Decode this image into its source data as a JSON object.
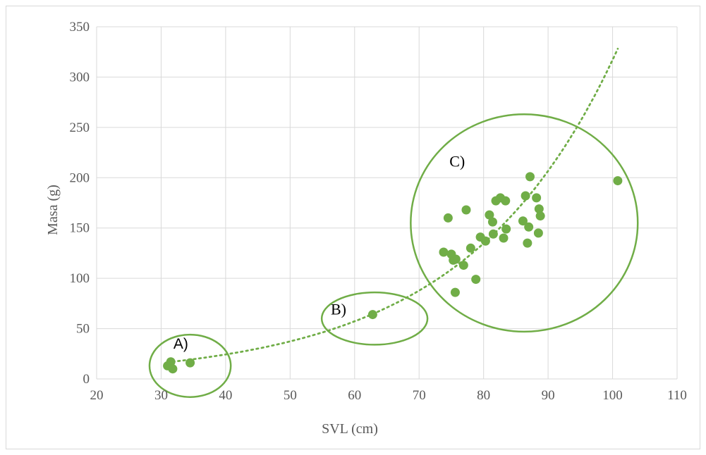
{
  "chart_data": {
    "type": "scatter",
    "title": "",
    "xlabel": "SVL (cm)",
    "ylabel": "Masa (g)",
    "xlim": [
      20,
      110
    ],
    "ylim": [
      0,
      350
    ],
    "xticks": [
      20,
      30,
      40,
      50,
      60,
      70,
      80,
      90,
      100,
      110
    ],
    "yticks": [
      0,
      50,
      100,
      150,
      200,
      250,
      300,
      350
    ],
    "grid": true,
    "legend": "none",
    "colors": {
      "points": "#70ad47",
      "trendline": "#70ad47",
      "ellipses": "#70ad47",
      "grid": "#d9d9d9",
      "axis_text": "#595959"
    },
    "series": [
      {
        "points": [
          {
            "x": 31.0,
            "y": 13
          },
          {
            "x": 31.5,
            "y": 17
          },
          {
            "x": 31.8,
            "y": 10
          },
          {
            "x": 34.5,
            "y": 16
          },
          {
            "x": 62.8,
            "y": 64
          },
          {
            "x": 73.8,
            "y": 126
          },
          {
            "x": 74.5,
            "y": 160
          },
          {
            "x": 75.0,
            "y": 124
          },
          {
            "x": 75.3,
            "y": 118
          },
          {
            "x": 75.7,
            "y": 119
          },
          {
            "x": 75.6,
            "y": 86
          },
          {
            "x": 76.9,
            "y": 113
          },
          {
            "x": 77.3,
            "y": 168
          },
          {
            "x": 78.0,
            "y": 130
          },
          {
            "x": 78.8,
            "y": 99
          },
          {
            "x": 79.5,
            "y": 141
          },
          {
            "x": 80.3,
            "y": 137
          },
          {
            "x": 80.9,
            "y": 163
          },
          {
            "x": 81.4,
            "y": 156
          },
          {
            "x": 81.5,
            "y": 144
          },
          {
            "x": 81.9,
            "y": 177
          },
          {
            "x": 82.6,
            "y": 180
          },
          {
            "x": 83.1,
            "y": 140
          },
          {
            "x": 83.4,
            "y": 177
          },
          {
            "x": 83.5,
            "y": 149
          },
          {
            "x": 86.1,
            "y": 157
          },
          {
            "x": 86.5,
            "y": 182
          },
          {
            "x": 86.8,
            "y": 135
          },
          {
            "x": 87.0,
            "y": 151
          },
          {
            "x": 87.2,
            "y": 201
          },
          {
            "x": 88.2,
            "y": 180
          },
          {
            "x": 88.5,
            "y": 145
          },
          {
            "x": 88.6,
            "y": 169
          },
          {
            "x": 88.8,
            "y": 162
          },
          {
            "x": 100.8,
            "y": 197
          }
        ]
      }
    ],
    "trendline": {
      "type": "exponential",
      "a": 4.39,
      "b": 0.0428,
      "x_range": [
        31,
        100.8
      ]
    },
    "annotations": [
      {
        "label": "A)",
        "cx": 34.5,
        "cy": 13,
        "rx": 6.3,
        "ry": 31
      },
      {
        "label": "B)",
        "cx": 63.1,
        "cy": 60,
        "rx": 8.2,
        "ry": 26
      },
      {
        "label": "C)",
        "cx": 86.3,
        "cy": 155,
        "rx": 17.6,
        "ry": 108
      }
    ]
  }
}
